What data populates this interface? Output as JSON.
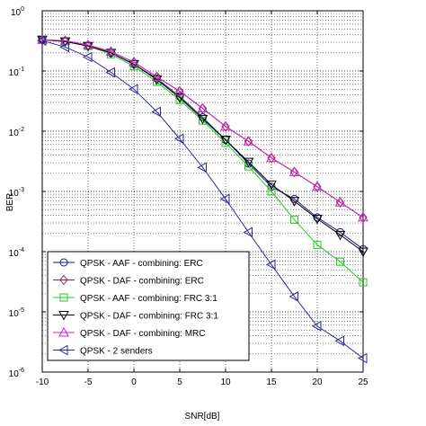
{
  "chart_data": {
    "type": "line",
    "xlabel": "SNR[dB]",
    "ylabel": "BER",
    "xlim": [
      -10,
      25
    ],
    "ylim": [
      1e-06,
      1
    ],
    "yscale": "log",
    "grid": true,
    "legend_position": "bottom-left",
    "x_ticks": [
      -10,
      -5,
      0,
      5,
      10,
      15,
      20,
      25
    ],
    "y_ticks": [
      {
        "value": 1,
        "base": "10",
        "exp": "0"
      },
      {
        "value": 0.1,
        "base": "10",
        "exp": "-1"
      },
      {
        "value": 0.01,
        "base": "10",
        "exp": "-2"
      },
      {
        "value": 0.001,
        "base": "10",
        "exp": "-3"
      },
      {
        "value": 0.0001,
        "base": "10",
        "exp": "-4"
      },
      {
        "value": 1e-05,
        "base": "10",
        "exp": "-5"
      },
      {
        "value": 1e-06,
        "base": "10",
        "exp": "-6"
      }
    ],
    "series": [
      {
        "name": "QPSK - AAF - combining: ERC",
        "color": "#1a1a8c",
        "marker": "circle",
        "x": [
          -10,
          -7.5,
          -5,
          -2.5,
          0,
          2.5,
          5,
          7.5,
          10,
          12.5,
          15,
          17.5,
          20,
          22.5,
          25
        ],
        "y": [
          0.33,
          0.31,
          0.26,
          0.2,
          0.13,
          0.075,
          0.038,
          0.017,
          0.0072,
          0.0029,
          0.0012,
          0.00075,
          0.00037,
          0.00021,
          0.00011
        ]
      },
      {
        "name": "QPSK - DAF - combining: ERC",
        "color": "#a0204a",
        "marker": "diamond",
        "x": [
          -10,
          -7.5,
          -5,
          -2.5,
          0,
          2.5,
          5,
          7.5,
          10,
          12.5,
          15,
          17.5,
          20,
          22.5,
          25
        ],
        "y": [
          0.33,
          0.32,
          0.27,
          0.21,
          0.14,
          0.08,
          0.046,
          0.024,
          0.012,
          0.0068,
          0.0036,
          0.0021,
          0.0012,
          0.00066,
          0.00037
        ]
      },
      {
        "name": "QPSK - AAF - combining: FRC 3:1",
        "color": "#22cc22",
        "marker": "square",
        "x": [
          -10,
          -7.5,
          -5,
          -2.5,
          0,
          2.5,
          5,
          7.5,
          10,
          12.5,
          15,
          17.5,
          20,
          22.5,
          25
        ],
        "y": [
          0.33,
          0.31,
          0.26,
          0.19,
          0.12,
          0.066,
          0.033,
          0.015,
          0.0064,
          0.0026,
          0.001,
          0.00034,
          0.00013,
          6.8e-05,
          3.1e-05
        ]
      },
      {
        "name": "QPSK - DAF - combining: FRC 3:1",
        "color": "#000000",
        "marker": "triangle-down",
        "x": [
          -10,
          -7.5,
          -5,
          -2.5,
          0,
          2.5,
          5,
          7.5,
          10,
          12.5,
          15,
          17.5,
          20,
          22.5,
          25
        ],
        "y": [
          0.33,
          0.31,
          0.26,
          0.2,
          0.13,
          0.072,
          0.036,
          0.016,
          0.0072,
          0.0031,
          0.0013,
          0.00069,
          0.00035,
          0.00019,
          0.0001
        ]
      },
      {
        "name": "QPSK - DAF - combining: MRC",
        "color": "#cc22cc",
        "marker": "triangle-up",
        "x": [
          -10,
          -7.5,
          -5,
          -2.5,
          0,
          2.5,
          5,
          7.5,
          10,
          12.5,
          15,
          17.5,
          20,
          22.5,
          25
        ],
        "y": [
          0.33,
          0.32,
          0.27,
          0.21,
          0.14,
          0.08,
          0.046,
          0.024,
          0.012,
          0.0068,
          0.0036,
          0.0021,
          0.0012,
          0.00066,
          0.00037
        ]
      },
      {
        "name": "QPSK - 2 senders",
        "color": "#2a2aa0",
        "marker": "triangle-left",
        "x": [
          -10,
          -7.5,
          -5,
          -2.5,
          0,
          2.5,
          5,
          7.5,
          10,
          12.5,
          15,
          17.5,
          20,
          22.5,
          25
        ],
        "y": [
          0.32,
          0.25,
          0.17,
          0.095,
          0.05,
          0.021,
          0.0075,
          0.0025,
          0.00075,
          0.00021,
          6.1e-05,
          1.8e-05,
          5.8e-06,
          3.3e-06,
          1.7e-06
        ]
      }
    ]
  }
}
